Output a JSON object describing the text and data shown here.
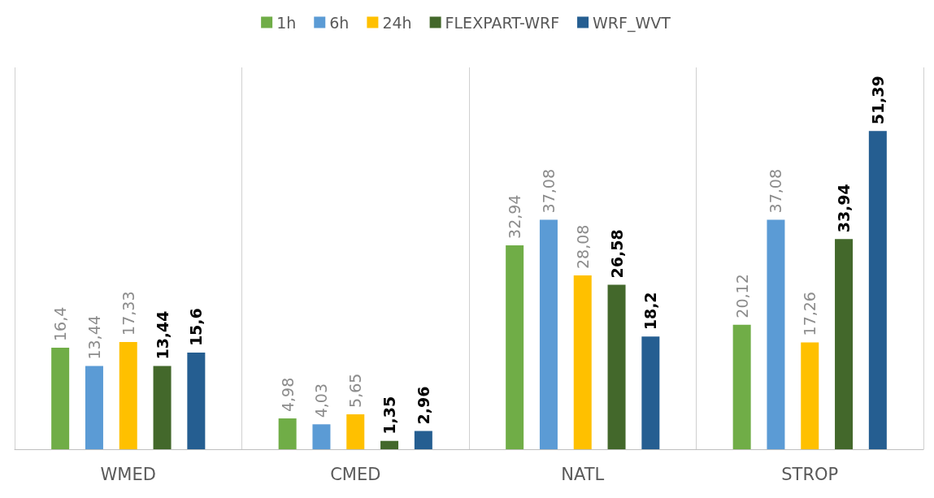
{
  "chart_data": {
    "type": "bar",
    "categories": [
      "WMED",
      "CMED",
      "NATL",
      "STROP"
    ],
    "series": [
      {
        "name": "1h",
        "color": "#70ad47",
        "values": [
          16.4,
          4.98,
          32.94,
          20.12
        ],
        "value_labels": [
          "16,4",
          "4,98",
          "32,94",
          "20,12"
        ]
      },
      {
        "name": "6h",
        "color": "#5b9bd5",
        "values": [
          13.44,
          4.03,
          37.08,
          37.08
        ],
        "value_labels": [
          "13,44",
          "4,03",
          "37,08",
          "37,08"
        ]
      },
      {
        "name": "24h",
        "color": "#ffc000",
        "values": [
          17.33,
          5.65,
          28.08,
          17.26
        ],
        "value_labels": [
          "17,33",
          "5,65",
          "28,08",
          "17,26"
        ]
      },
      {
        "name": "FLEXPART-WRF",
        "color": "#43682b",
        "values": [
          13.44,
          1.35,
          26.58,
          33.94
        ],
        "value_labels": [
          "13,44",
          "1,35",
          "26,58",
          "33,94"
        ]
      },
      {
        "name": "WRF_WVT",
        "color": "#255e91",
        "values": [
          15.6,
          2.96,
          18.2,
          51.39
        ],
        "value_labels": [
          "15,6",
          "2,96",
          "18,2",
          "51,39"
        ]
      }
    ],
    "grid": "x",
    "legend": "top"
  }
}
